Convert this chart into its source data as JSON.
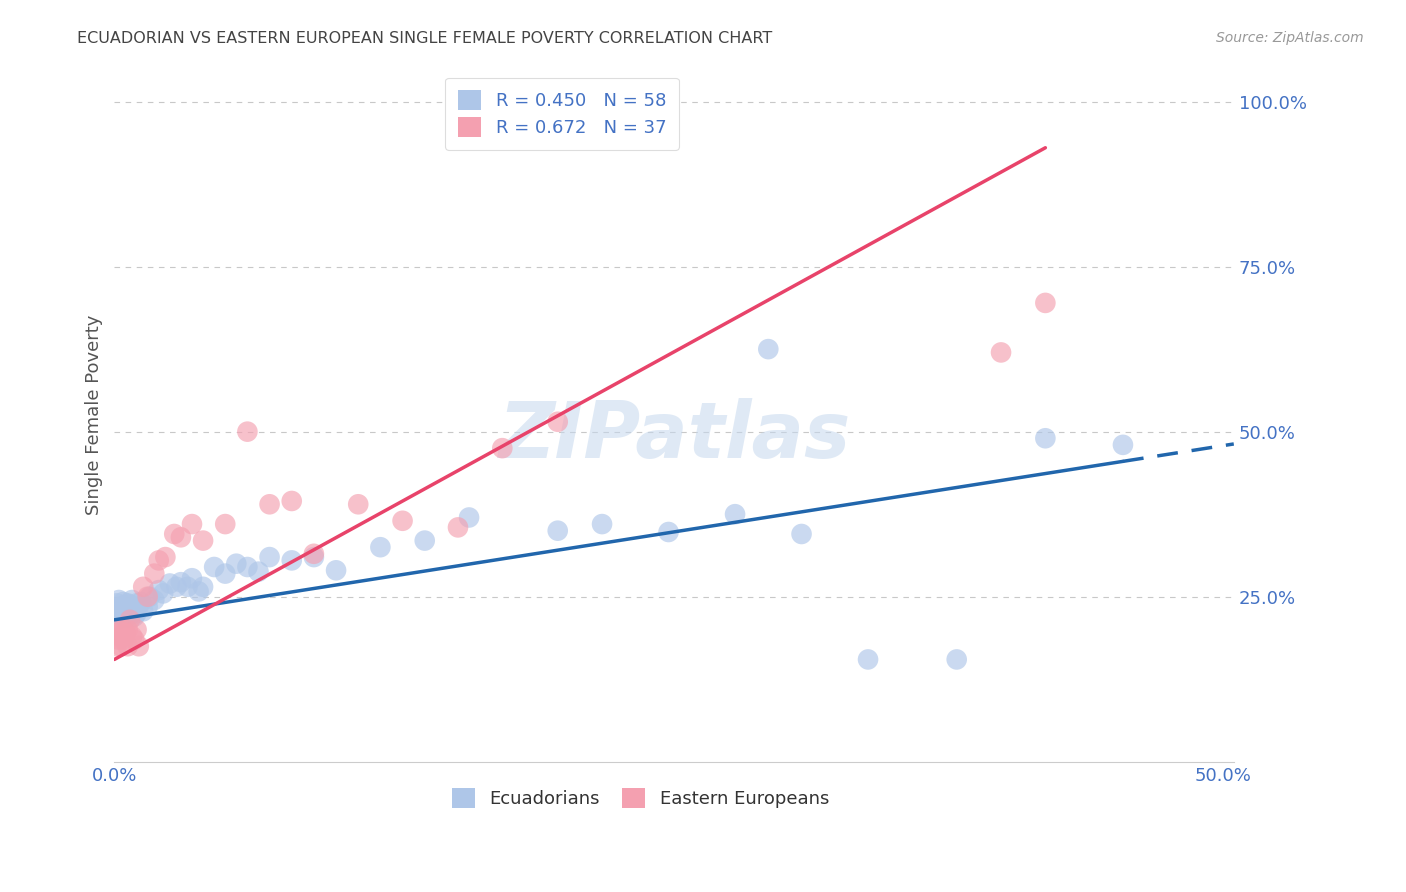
{
  "title": "ECUADORIAN VS EASTERN EUROPEAN SINGLE FEMALE POVERTY CORRELATION CHART",
  "source": "Source: ZipAtlas.com",
  "ylabel": "Single Female Poverty",
  "blue_R": 0.45,
  "blue_N": 58,
  "pink_R": 0.672,
  "pink_N": 37,
  "blue_color": "#aec6e8",
  "blue_line_color": "#2166ac",
  "pink_color": "#f4a0b0",
  "pink_line_color": "#e8436a",
  "watermark": "ZIPatlas",
  "background_color": "#ffffff",
  "grid_color": "#c8c8c8",
  "title_color": "#444444",
  "tick_color": "#4472c4",
  "ylabel_color": "#555555",
  "legend_label1": "Ecuadorians",
  "legend_label2": "Eastern Europeans",
  "blue_x": [
    0.001,
    0.001,
    0.001,
    0.002,
    0.002,
    0.003,
    0.003,
    0.004,
    0.004,
    0.005,
    0.005,
    0.006,
    0.006,
    0.007,
    0.007,
    0.008,
    0.008,
    0.009,
    0.009,
    0.01,
    0.01,
    0.011,
    0.012,
    0.013,
    0.015,
    0.016,
    0.018,
    0.02,
    0.022,
    0.025,
    0.028,
    0.03,
    0.033,
    0.035,
    0.038,
    0.04,
    0.045,
    0.05,
    0.055,
    0.06,
    0.065,
    0.07,
    0.08,
    0.09,
    0.1,
    0.12,
    0.14,
    0.16,
    0.2,
    0.22,
    0.25,
    0.28,
    0.295,
    0.31,
    0.34,
    0.38,
    0.42,
    0.455
  ],
  "blue_y": [
    0.225,
    0.24,
    0.215,
    0.23,
    0.245,
    0.22,
    0.235,
    0.228,
    0.242,
    0.218,
    0.235,
    0.225,
    0.24,
    0.222,
    0.238,
    0.23,
    0.245,
    0.22,
    0.232,
    0.24,
    0.225,
    0.235,
    0.242,
    0.228,
    0.235,
    0.25,
    0.245,
    0.26,
    0.255,
    0.27,
    0.265,
    0.272,
    0.265,
    0.278,
    0.258,
    0.265,
    0.295,
    0.285,
    0.3,
    0.295,
    0.288,
    0.31,
    0.305,
    0.31,
    0.29,
    0.325,
    0.335,
    0.37,
    0.35,
    0.36,
    0.348,
    0.375,
    0.625,
    0.345,
    0.155,
    0.155,
    0.49,
    0.48
  ],
  "pink_x": [
    0.001,
    0.001,
    0.002,
    0.002,
    0.003,
    0.003,
    0.004,
    0.004,
    0.005,
    0.006,
    0.006,
    0.007,
    0.008,
    0.009,
    0.01,
    0.011,
    0.013,
    0.015,
    0.018,
    0.02,
    0.023,
    0.027,
    0.03,
    0.035,
    0.04,
    0.05,
    0.06,
    0.07,
    0.08,
    0.09,
    0.11,
    0.13,
    0.155,
    0.175,
    0.2,
    0.4,
    0.42
  ],
  "pink_y": [
    0.195,
    0.175,
    0.2,
    0.185,
    0.19,
    0.175,
    0.2,
    0.185,
    0.195,
    0.175,
    0.2,
    0.215,
    0.19,
    0.185,
    0.2,
    0.175,
    0.265,
    0.25,
    0.285,
    0.305,
    0.31,
    0.345,
    0.34,
    0.36,
    0.335,
    0.36,
    0.5,
    0.39,
    0.395,
    0.315,
    0.39,
    0.365,
    0.355,
    0.475,
    0.515,
    0.62,
    0.695
  ],
  "blue_line_x0": 0.0,
  "blue_line_x1": 0.455,
  "blue_line_x2": 0.505,
  "blue_line_y0": 0.215,
  "blue_line_y1": 0.455,
  "pink_line_x0": 0.0,
  "pink_line_x1": 0.42,
  "pink_line_y0": 0.155,
  "pink_line_y1": 0.93,
  "xlim_min": 0.0,
  "xlim_max": 0.505,
  "ylim_min": 0.0,
  "ylim_max": 1.05
}
